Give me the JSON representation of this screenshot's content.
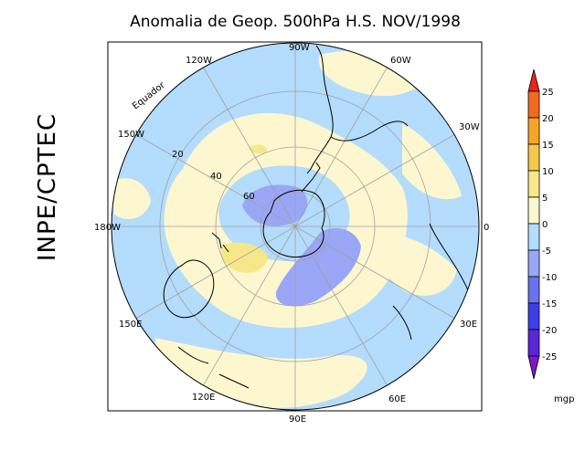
{
  "title": "Anomalia de Geop. 500hPa H.S. NOV/1998",
  "side_label": "INPE/CPTEC",
  "map": {
    "projection": "polar-stereographic-south",
    "longitude_labels": [
      "90W",
      "60W",
      "30W",
      "0",
      "30E",
      "60E",
      "90E",
      "120E",
      "150E",
      "180W",
      "150W",
      "120W"
    ],
    "latitude_labels": [
      "Equador",
      "20",
      "40",
      "60"
    ],
    "colors": {
      "ocean_neutral": "#fdf7d0",
      "neg_0_5": "#b4dcfc",
      "neg_5_10": "#9aa6f6",
      "pos_5_10": "#f6e88a",
      "grid": "#a0a0a0",
      "coast": "#000000"
    }
  },
  "colorbar": {
    "unit": "mgp",
    "tick_labels": [
      "25",
      "20",
      "15",
      "10",
      "5",
      "0",
      "-5",
      "-10",
      "-15",
      "-20",
      "-25"
    ],
    "colors": [
      "#e8261e",
      "#f26a20",
      "#f6a42c",
      "#f4c84a",
      "#f6e88a",
      "#fdf7d0",
      "#b4dcfc",
      "#9aa6f6",
      "#6a72ee",
      "#3e3eea",
      "#7e18cc"
    ]
  }
}
